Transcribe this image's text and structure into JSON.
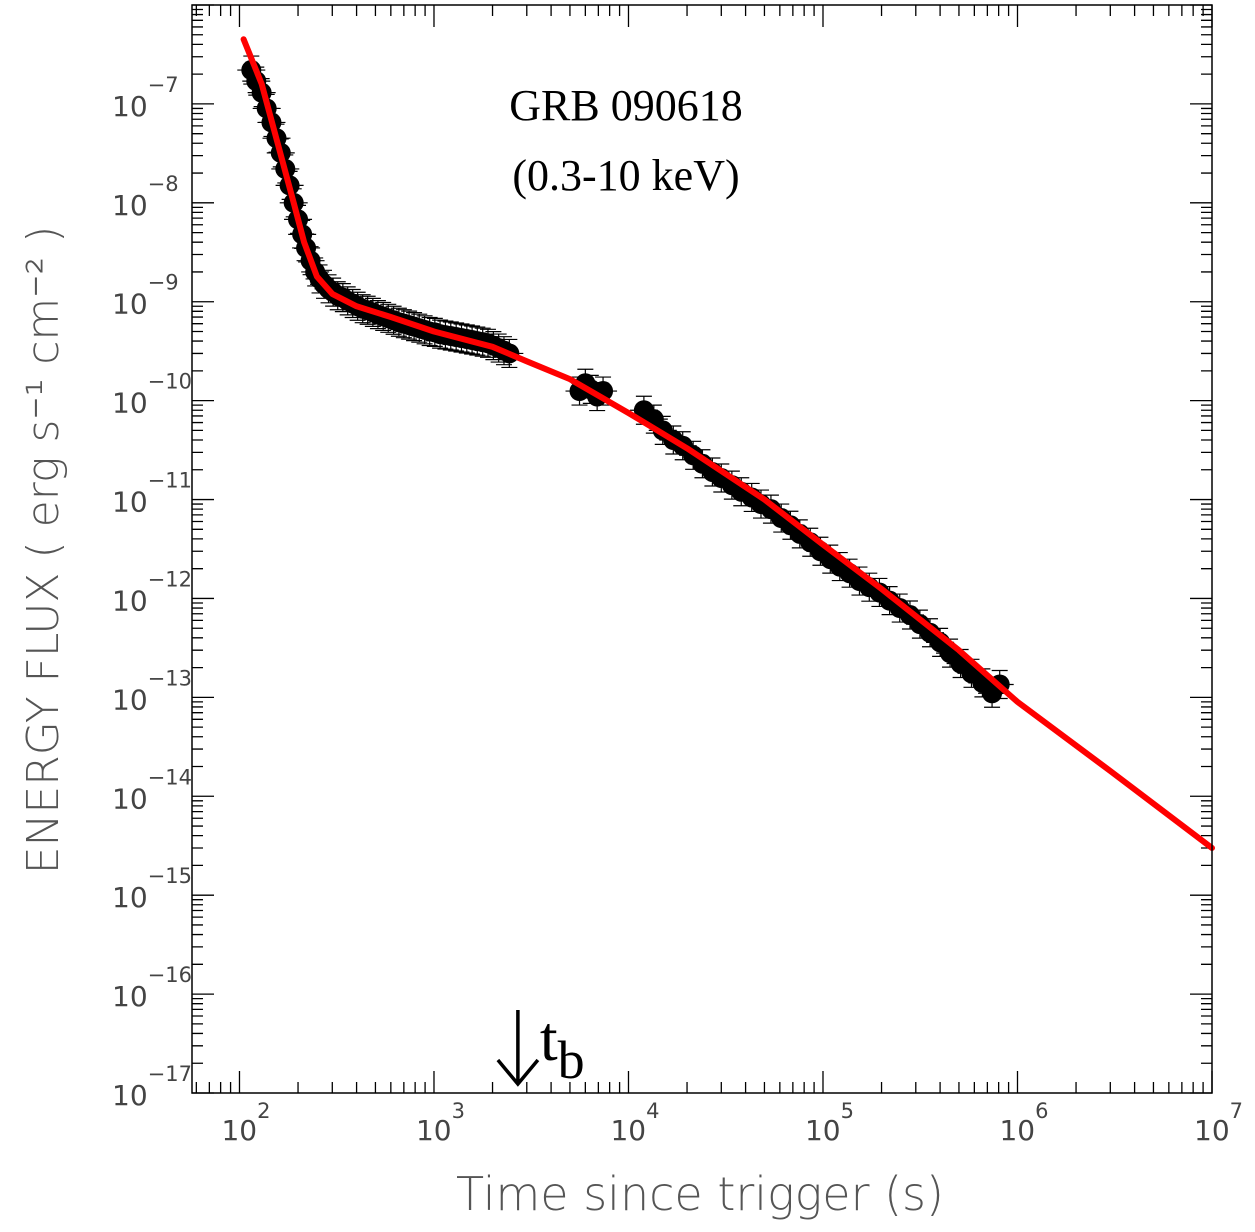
{
  "chart_data": {
    "type": "scatter",
    "title": "GRB 090618",
    "subtitle": "(0.3-10 keV)",
    "xlabel": "Time since trigger (s)",
    "ylabel": "ENERGY FLUX ( erg s⁻¹ cm⁻² )",
    "xscale": "log",
    "yscale": "log",
    "xlim": [
      57,
      10000000
    ],
    "ylim": [
      1e-17,
      1e-06
    ],
    "x_ticks": [
      100,
      1000,
      10000,
      100000,
      1000000,
      10000000
    ],
    "x_tick_labels": [
      {
        "base": "10",
        "exp": "2"
      },
      {
        "base": "10",
        "exp": "3"
      },
      {
        "base": "10",
        "exp": "4"
      },
      {
        "base": "10",
        "exp": "5"
      },
      {
        "base": "10",
        "exp": "6"
      },
      {
        "base": "10",
        "exp": "7"
      }
    ],
    "y_ticks": [
      1e-07,
      1e-08,
      1e-09,
      1e-10,
      1e-11,
      1e-12,
      1e-13,
      1e-14,
      1e-15,
      1e-16,
      1e-17
    ],
    "y_tick_labels": [
      {
        "base": "10",
        "exp": "−7"
      },
      {
        "base": "10",
        "exp": "−8"
      },
      {
        "base": "10",
        "exp": "−9"
      },
      {
        "base": "10",
        "exp": "−10"
      },
      {
        "base": "10",
        "exp": "−11"
      },
      {
        "base": "10",
        "exp": "−12"
      },
      {
        "base": "10",
        "exp": "−13"
      },
      {
        "base": "10",
        "exp": "−14"
      },
      {
        "base": "10",
        "exp": "−15"
      },
      {
        "base": "10",
        "exp": "−16"
      },
      {
        "base": "10",
        "exp": "−17"
      }
    ],
    "grid": false,
    "legend": "none",
    "series": [
      {
        "kind": "data-points-with-error-bars",
        "color": "#000000",
        "points": [
          [
            115,
            2.2e-07
          ],
          [
            122,
            1.7e-07
          ],
          [
            130,
            1.3e-07
          ],
          [
            138,
            9e-08
          ],
          [
            146,
            6.5e-08
          ],
          [
            155,
            4.5e-08
          ],
          [
            163,
            3.2e-08
          ],
          [
            172,
            2.2e-08
          ],
          [
            181,
            1.5e-08
          ],
          [
            190,
            1e-08
          ],
          [
            200,
            6.8e-09
          ],
          [
            210,
            4.8e-09
          ],
          [
            220,
            3.5e-09
          ],
          [
            232,
            2.6e-09
          ],
          [
            245,
            2e-09
          ],
          [
            258,
            1.7e-09
          ],
          [
            272,
            1.5e-09
          ],
          [
            287,
            1.35e-09
          ],
          [
            303,
            1.25e-09
          ],
          [
            320,
            1.15e-09
          ],
          [
            340,
            1.1e-09
          ],
          [
            360,
            1.02e-09
          ],
          [
            382,
            9.6e-10
          ],
          [
            405,
            9e-10
          ],
          [
            430,
            8.5e-10
          ],
          [
            456,
            8.2e-10
          ],
          [
            485,
            7.8e-10
          ],
          [
            515,
            7.4e-10
          ],
          [
            548,
            7.1e-10
          ],
          [
            582,
            6.8e-10
          ],
          [
            620,
            6.5e-10
          ],
          [
            660,
            6.2e-10
          ],
          [
            700,
            6e-10
          ],
          [
            745,
            5.8e-10
          ],
          [
            790,
            5.6e-10
          ],
          [
            840,
            5.4e-10
          ],
          [
            895,
            5.2e-10
          ],
          [
            950,
            5e-10
          ],
          [
            1010,
            4.9e-10
          ],
          [
            1075,
            4.7e-10
          ],
          [
            1145,
            4.6e-10
          ],
          [
            1220,
            4.5e-10
          ],
          [
            1300,
            4.4e-10
          ],
          [
            1385,
            4.3e-10
          ],
          [
            1475,
            4.2e-10
          ],
          [
            1570,
            4.1e-10
          ],
          [
            1670,
            4e-10
          ],
          [
            1780,
            3.9e-10
          ],
          [
            1895,
            3.8e-10
          ],
          [
            2020,
            3.6e-10
          ],
          [
            2150,
            3.4e-10
          ],
          [
            2290,
            3.2e-10
          ],
          [
            2440,
            3e-10
          ],
          [
            5600,
            1.25e-10
          ],
          [
            6000,
            1.5e-10
          ],
          [
            6400,
            1.3e-10
          ],
          [
            6900,
            1.1e-10
          ],
          [
            7400,
            1.25e-10
          ],
          [
            12000,
            8e-11
          ],
          [
            13500,
            6.5e-11
          ],
          [
            15000,
            5e-11
          ],
          [
            17000,
            4e-11
          ],
          [
            19000,
            3.5e-11
          ],
          [
            21500,
            2.8e-11
          ],
          [
            24000,
            2.3e-11
          ],
          [
            27000,
            1.9e-11
          ],
          [
            30000,
            1.65e-11
          ],
          [
            34000,
            1.4e-11
          ],
          [
            38000,
            1.2e-11
          ],
          [
            43000,
            1.05e-11
          ],
          [
            48000,
            9e-12
          ],
          [
            54000,
            8e-12
          ],
          [
            61000,
            6.5e-12
          ],
          [
            68000,
            5.5e-12
          ],
          [
            76000,
            4.5e-12
          ],
          [
            86000,
            3.7e-12
          ],
          [
            97000,
            3e-12
          ],
          [
            109000,
            2.5e-12
          ],
          [
            122000,
            2.1e-12
          ],
          [
            137000,
            1.8e-12
          ],
          [
            154000,
            1.5e-12
          ],
          [
            173000,
            1.3e-12
          ],
          [
            195000,
            1.15e-12
          ],
          [
            220000,
            9.5e-13
          ],
          [
            248000,
            8e-13
          ],
          [
            280000,
            6.8e-13
          ],
          [
            315000,
            5.5e-13
          ],
          [
            355000,
            4.5e-13
          ],
          [
            400000,
            3.6e-13
          ],
          [
            450000,
            2.8e-13
          ],
          [
            510000,
            2.2e-13
          ],
          [
            580000,
            1.75e-13
          ],
          [
            660000,
            1.4e-13
          ],
          [
            740000,
            1.1e-13
          ],
          [
            810000,
            1.35e-13
          ]
        ]
      },
      {
        "kind": "model-fit",
        "color": "#ff0000",
        "points": [
          [
            105,
            4.5e-07
          ],
          [
            130,
            1.6e-07
          ],
          [
            160,
            3.5e-08
          ],
          [
            190,
            1e-08
          ],
          [
            215,
            4e-09
          ],
          [
            250,
            1.8e-09
          ],
          [
            300,
            1.2e-09
          ],
          [
            400,
            9e-10
          ],
          [
            600,
            7e-10
          ],
          [
            1000,
            5e-10
          ],
          [
            2000,
            3.5e-10
          ],
          [
            3000,
            2.5e-10
          ],
          [
            5000,
            1.65e-10
          ],
          [
            10000,
            7.5e-11
          ],
          [
            20000,
            3.3e-11
          ],
          [
            50000,
            1e-11
          ],
          [
            100000,
            3.5e-12
          ],
          [
            200000,
            1.25e-12
          ],
          [
            500000,
            3e-13
          ],
          [
            1000000,
            9e-14
          ],
          [
            3000000,
            1.8e-14
          ],
          [
            10000000,
            3e-15
          ]
        ]
      }
    ],
    "annotations": [
      {
        "kind": "arrow-down",
        "x": 2700,
        "label": "t",
        "subscript": "b"
      }
    ]
  }
}
